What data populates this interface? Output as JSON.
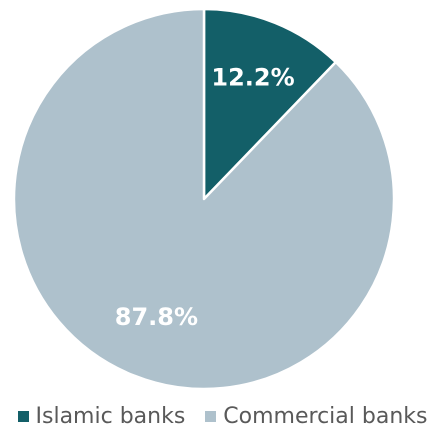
{
  "chart_data": {
    "type": "pie",
    "start_angle_deg": 0,
    "direction": "clockwise",
    "slices": [
      {
        "label": "Islamic banks",
        "value": 12.2,
        "display": "12.2%",
        "color": "#135F68"
      },
      {
        "label": "Commercial banks",
        "value": 87.8,
        "display": "87.8%",
        "color": "#AEC1CC"
      }
    ],
    "legend": {
      "position": "bottom",
      "items": [
        {
          "label": "Islamic banks",
          "color": "#135F68"
        },
        {
          "label": "Commercial banks",
          "color": "#AEC1CC"
        }
      ]
    }
  }
}
